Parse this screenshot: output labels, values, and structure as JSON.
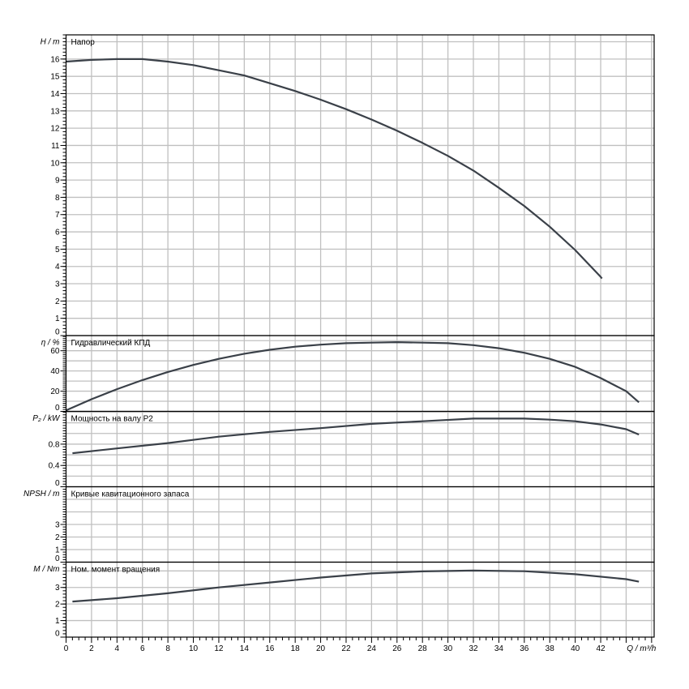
{
  "chart_data": [
    {
      "type": "line",
      "ylabel": "H / m",
      "title": "Напор",
      "xlim": [
        0,
        46.2
      ],
      "ylim": [
        0,
        17.4
      ],
      "yticks": [
        0,
        1,
        2,
        3,
        4,
        5,
        6,
        7,
        8,
        9,
        10,
        11,
        12,
        13,
        14,
        15,
        16
      ],
      "ygrid": 1,
      "x": [
        0,
        2,
        4,
        6,
        8,
        10,
        12,
        14,
        16,
        18,
        20,
        22,
        24,
        26,
        28,
        30,
        32,
        34,
        36,
        38,
        40,
        42,
        42.1
      ],
      "y": [
        15.85,
        15.95,
        16.0,
        16.0,
        15.85,
        15.65,
        15.35,
        15.05,
        14.6,
        14.15,
        13.65,
        13.1,
        12.5,
        11.85,
        11.15,
        10.4,
        9.55,
        8.55,
        7.5,
        6.3,
        4.95,
        3.4,
        3.3
      ]
    },
    {
      "type": "line",
      "ylabel": "η / %",
      "title": "Гидравлический КПД",
      "xlim": [
        0,
        46.2
      ],
      "ylim": [
        0,
        75
      ],
      "yticks": [
        0,
        20,
        40,
        60
      ],
      "ygrid": 10,
      "x": [
        0,
        2,
        4,
        6,
        8,
        10,
        12,
        14,
        16,
        18,
        20,
        22,
        24,
        26,
        28,
        30,
        32,
        34,
        36,
        38,
        40,
        42,
        44,
        45
      ],
      "y": [
        1,
        12,
        22,
        31,
        39,
        46,
        52,
        57,
        61,
        64,
        66,
        67.5,
        68,
        68.5,
        68,
        67.5,
        65.5,
        62.5,
        58,
        52,
        44,
        33,
        20,
        9
      ]
    },
    {
      "type": "line",
      "ylabel": "P₂ / kW",
      "title": "Мощность на валу P2",
      "xlim": [
        0,
        46.2
      ],
      "ylim": [
        0,
        1.415
      ],
      "yticks": [
        0,
        0.4,
        0.8
      ],
      "ygrid": 0.2,
      "x": [
        0.5,
        4,
        8,
        12,
        16,
        20,
        24,
        28,
        32,
        36,
        38,
        40,
        42,
        44,
        45
      ],
      "y": [
        0.63,
        0.72,
        0.82,
        0.94,
        1.03,
        1.1,
        1.18,
        1.23,
        1.28,
        1.28,
        1.26,
        1.23,
        1.17,
        1.08,
        0.98
      ]
    },
    {
      "type": "line",
      "ylabel": "NPSH / m",
      "title": "Кривые кавитационного запаса",
      "xlim": [
        0,
        46.2
      ],
      "ylim": [
        0,
        6
      ],
      "yticks": [
        0,
        1,
        2,
        3
      ],
      "ygrid": 1,
      "x": [],
      "y": []
    },
    {
      "type": "line",
      "ylabel": "M / Nm",
      "title": "Ном. момент вращения",
      "xlim": [
        0,
        46.2
      ],
      "ylim": [
        0,
        4.53
      ],
      "yticks": [
        0,
        1,
        2,
        3
      ],
      "ygrid": 1,
      "x": [
        0.5,
        4,
        8,
        12,
        16,
        20,
        24,
        28,
        32,
        36,
        40,
        44,
        45
      ],
      "y": [
        2.15,
        2.35,
        2.65,
        3.0,
        3.3,
        3.6,
        3.85,
        3.97,
        4.02,
        3.98,
        3.8,
        3.5,
        3.35
      ]
    }
  ],
  "xaxis": {
    "label": "Q / m³/h",
    "ticks": [
      0,
      2,
      4,
      6,
      8,
      10,
      12,
      14,
      16,
      18,
      20,
      22,
      24,
      26,
      28,
      30,
      32,
      34,
      36,
      38,
      40,
      42
    ]
  },
  "colors": {
    "curve": "#3a4048",
    "grid": "#c0c0c0",
    "frame": "#000000"
  }
}
